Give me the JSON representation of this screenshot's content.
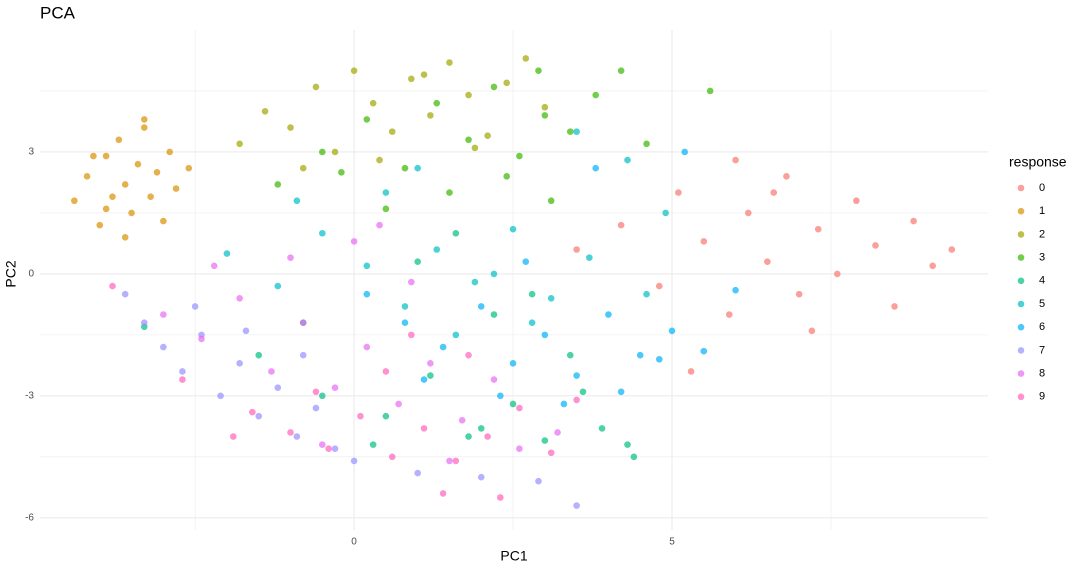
{
  "chart_data": {
    "type": "scatter",
    "title": "PCA",
    "x_label": "PC1",
    "y_label": "PC2",
    "legend_title": "response",
    "legend_position": "right",
    "xlim": [
      -4.94,
      9.97
    ],
    "ylim": [
      -6.3,
      6.0
    ],
    "xticks": [
      0,
      5
    ],
    "yticks": [
      -6,
      -3,
      0,
      3
    ],
    "minor_xticks": [
      -2.5,
      2.5,
      7.5
    ],
    "minor_yticks": [
      -4.5,
      -1.5,
      1.5,
      4.5
    ],
    "grid": true,
    "point_alpha": 0.7,
    "series": [
      {
        "name": "0",
        "color": "#F8766D",
        "x": [
          3.5,
          4.2,
          4.8,
          5.1,
          5.5,
          5.9,
          6.2,
          6.5,
          6.8,
          7.0,
          7.3,
          7.6,
          7.9,
          8.2,
          8.5,
          8.8,
          9.1,
          9.4,
          6.0,
          7.2,
          5.3,
          6.6
        ],
        "y": [
          0.6,
          1.2,
          -0.3,
          2.0,
          0.8,
          -1.0,
          1.5,
          0.3,
          2.4,
          -0.5,
          1.1,
          0.0,
          1.8,
          0.7,
          -0.8,
          1.3,
          0.2,
          0.6,
          2.8,
          -1.4,
          -2.4,
          2.0
        ]
      },
      {
        "name": "1",
        "color": "#D89000",
        "x": [
          -4.4,
          -4.2,
          -4.0,
          -3.9,
          -3.8,
          -3.7,
          -3.6,
          -3.5,
          -3.4,
          -3.3,
          -3.2,
          -3.1,
          -3.0,
          -2.9,
          -2.8,
          -3.6,
          -4.1,
          -3.3,
          -2.6,
          -3.9
        ],
        "y": [
          1.8,
          2.4,
          1.2,
          2.9,
          1.9,
          3.3,
          2.2,
          1.5,
          2.7,
          3.6,
          1.9,
          2.5,
          1.3,
          3.0,
          2.1,
          0.9,
          2.9,
          3.8,
          2.6,
          1.6
        ]
      },
      {
        "name": "2",
        "color": "#A3A500",
        "x": [
          -1.8,
          -1.4,
          -1.0,
          -0.6,
          -0.3,
          0.0,
          0.3,
          0.6,
          0.9,
          1.2,
          1.5,
          1.8,
          2.1,
          2.4,
          2.7,
          -0.8,
          0.4,
          1.1,
          1.9,
          3.0
        ],
        "y": [
          3.2,
          4.0,
          3.6,
          4.6,
          3.0,
          5.0,
          4.2,
          3.5,
          4.8,
          3.9,
          5.2,
          4.4,
          3.4,
          4.7,
          5.3,
          2.6,
          2.8,
          4.9,
          3.1,
          4.1
        ]
      },
      {
        "name": "3",
        "color": "#39B600",
        "x": [
          -1.2,
          -0.5,
          0.2,
          0.8,
          1.3,
          1.8,
          2.2,
          2.6,
          3.0,
          3.4,
          3.8,
          4.2,
          0.5,
          1.5,
          2.4,
          3.1,
          -0.2,
          2.9,
          4.6,
          5.6
        ],
        "y": [
          2.2,
          3.0,
          3.8,
          2.6,
          4.2,
          3.3,
          4.6,
          2.9,
          3.9,
          3.5,
          4.4,
          5.0,
          1.6,
          2.0,
          2.4,
          1.8,
          2.5,
          5.0,
          3.2,
          4.5
        ]
      },
      {
        "name": "4",
        "color": "#00BF7D",
        "x": [
          -3.3,
          -1.5,
          -0.5,
          0.5,
          1.2,
          1.8,
          2.5,
          3.0,
          3.4,
          3.9,
          4.3,
          2.2,
          1.0,
          2.8,
          3.6,
          -0.8,
          0.3,
          2.0,
          4.4,
          1.6
        ],
        "y": [
          -1.3,
          -2.0,
          -3.0,
          -3.5,
          -2.5,
          -4.0,
          -3.2,
          -4.1,
          -2.0,
          -3.8,
          -4.2,
          -1.0,
          0.3,
          -0.5,
          -2.9,
          -1.2,
          -4.2,
          -3.8,
          -4.5,
          1.0
        ]
      },
      {
        "name": "5",
        "color": "#00BFC4",
        "x": [
          -2.0,
          -1.2,
          -0.5,
          0.2,
          0.8,
          1.3,
          1.9,
          2.5,
          3.1,
          3.7,
          4.3,
          4.9,
          0.5,
          1.6,
          2.8,
          -0.9,
          1.0,
          2.2,
          3.5,
          4.6
        ],
        "y": [
          0.5,
          -0.3,
          1.0,
          0.2,
          -0.8,
          0.6,
          -0.2,
          1.1,
          -0.6,
          0.4,
          2.8,
          1.5,
          2.0,
          -1.5,
          -1.2,
          1.8,
          2.6,
          0.0,
          3.5,
          -0.5
        ]
      },
      {
        "name": "6",
        "color": "#00B0F6",
        "x": [
          0.2,
          0.8,
          1.4,
          2.0,
          2.5,
          3.0,
          3.5,
          4.0,
          4.5,
          5.0,
          5.5,
          6.0,
          1.1,
          2.3,
          3.3,
          4.2,
          4.8,
          2.7,
          3.8,
          5.2
        ],
        "y": [
          -0.5,
          -1.2,
          -1.8,
          -0.8,
          -2.2,
          -1.5,
          -2.5,
          -1.0,
          -2.0,
          -1.4,
          -1.9,
          -0.4,
          -2.6,
          -3.0,
          -3.2,
          -2.9,
          -2.1,
          0.3,
          2.6,
          3.0
        ]
      },
      {
        "name": "7",
        "color": "#9590FF",
        "x": [
          -3.6,
          -3.3,
          -3.0,
          -2.7,
          -2.4,
          -2.1,
          -1.8,
          -1.5,
          -1.2,
          -0.9,
          -0.6,
          -0.3,
          0.0,
          -2.5,
          -1.7,
          -0.8,
          1.0,
          2.0,
          2.9,
          3.5
        ],
        "y": [
          -0.5,
          -1.2,
          -1.8,
          -2.4,
          -1.5,
          -3.0,
          -2.2,
          -3.5,
          -2.8,
          -4.0,
          -3.3,
          -4.3,
          -4.6,
          -0.8,
          -1.4,
          -2.0,
          -4.9,
          -5.0,
          -5.1,
          -5.7
        ]
      },
      {
        "name": "8",
        "color": "#E76BF3",
        "x": [
          -3.0,
          -2.4,
          -1.8,
          -1.3,
          -0.8,
          -0.3,
          0.2,
          0.7,
          1.2,
          1.7,
          2.2,
          -1.0,
          0.0,
          0.9,
          -2.2,
          1.5,
          2.6,
          3.2,
          -0.5,
          0.4
        ],
        "y": [
          -1.0,
          -1.6,
          -0.6,
          -2.4,
          -1.2,
          -2.8,
          -1.8,
          -3.2,
          -2.2,
          -3.6,
          -2.6,
          0.4,
          0.8,
          -0.2,
          0.2,
          -4.6,
          -4.3,
          -3.9,
          -4.2,
          1.2
        ]
      },
      {
        "name": "9",
        "color": "#FF62BC",
        "x": [
          -3.8,
          -2.7,
          -1.6,
          -1.0,
          -0.4,
          0.1,
          0.6,
          1.1,
          1.6,
          2.1,
          2.6,
          3.1,
          -0.6,
          0.5,
          1.4,
          2.3,
          0.9,
          1.8,
          -1.9,
          3.5
        ],
        "y": [
          -0.3,
          -2.6,
          -3.4,
          -3.9,
          -4.3,
          -3.5,
          -4.5,
          -3.8,
          -4.6,
          -4.0,
          -3.3,
          -4.4,
          -2.9,
          -2.4,
          -5.4,
          -5.5,
          -1.5,
          -2.0,
          -4.0,
          -3.1
        ]
      }
    ]
  }
}
